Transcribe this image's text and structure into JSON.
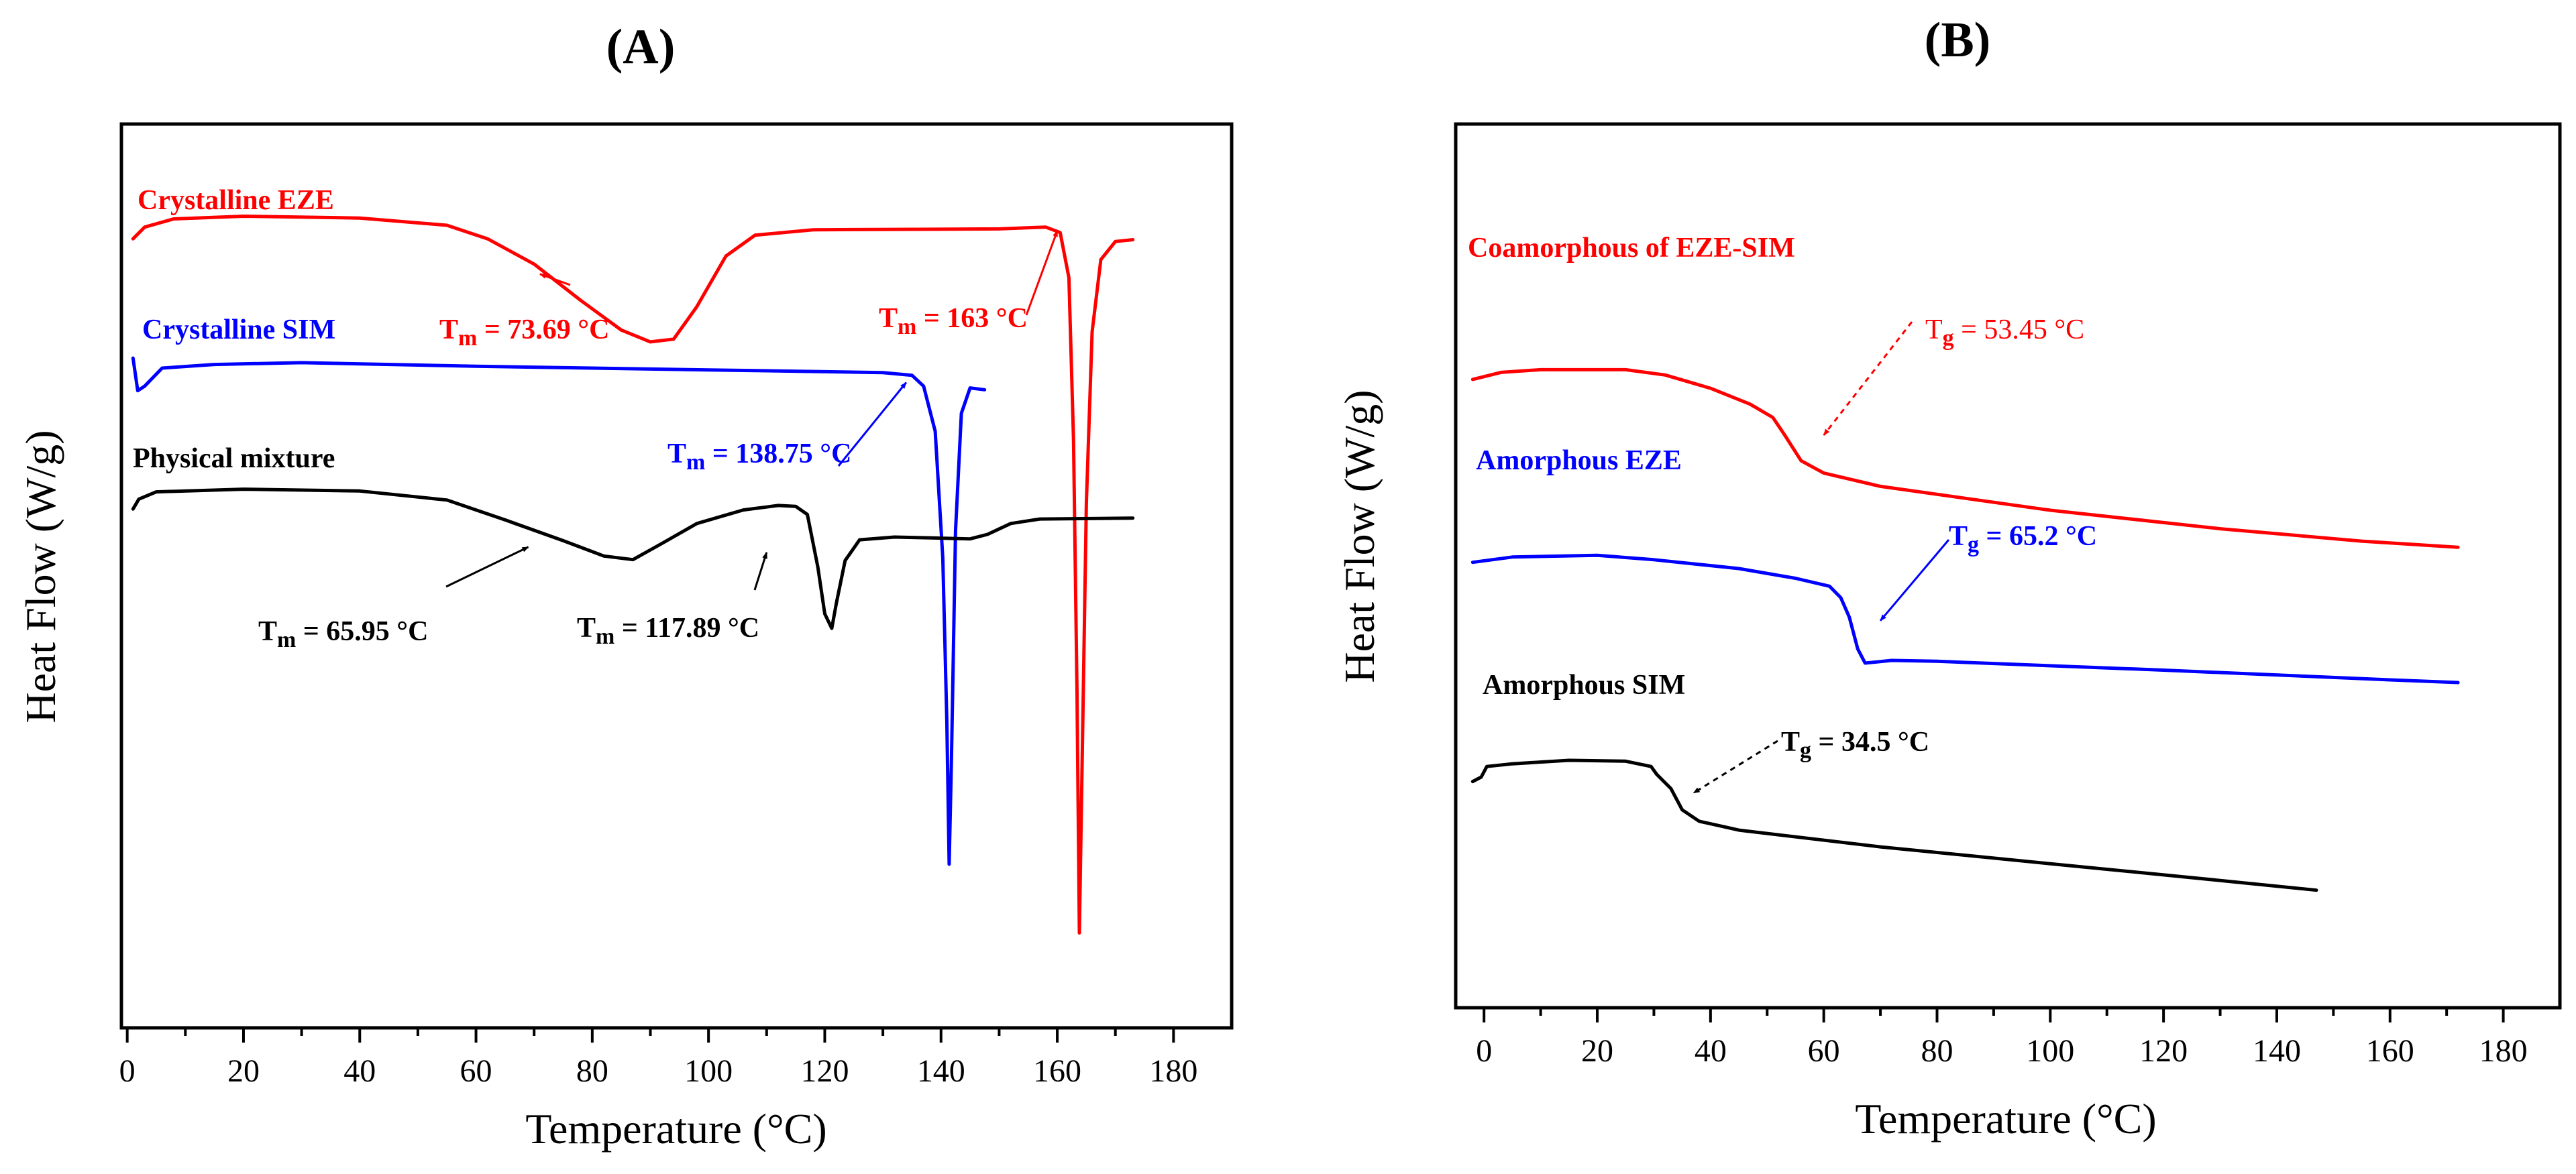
{
  "chart_data": [
    {
      "id": "A",
      "type": "line",
      "panel_label": "(A)",
      "xlabel": "Temperature (°C)",
      "ylabel": "Heat Flow (W/g)",
      "xlim": [
        -1,
        190
      ],
      "ylim": [
        0,
        100
      ],
      "xticks": [
        0,
        20,
        40,
        60,
        80,
        100,
        120,
        140,
        160,
        180
      ],
      "x_minor_step": 10,
      "grid": false,
      "y_units": "relative offset (arbitrary, no y ticks shown)",
      "series": [
        {
          "name": "Crystalline EZE",
          "color": "#ff0000",
          "points": [
            [
              1,
              87.3
            ],
            [
              3,
              88.6
            ],
            [
              8,
              89.5
            ],
            [
              20,
              89.8
            ],
            [
              40,
              89.6
            ],
            [
              55,
              88.8
            ],
            [
              62,
              87.3
            ],
            [
              70,
              84.5
            ],
            [
              78,
              80.5
            ],
            [
              85,
              77.2
            ],
            [
              90,
              75.9
            ],
            [
              94,
              76.2
            ],
            [
              98,
              79.8
            ],
            [
              103,
              85.4
            ],
            [
              108,
              87.7
            ],
            [
              118,
              88.3
            ],
            [
              150,
              88.4
            ],
            [
              158,
              88.6
            ],
            [
              160.5,
              88.0
            ],
            [
              162,
              83
            ],
            [
              162.8,
              65
            ],
            [
              163.4,
              37
            ],
            [
              163.8,
              10.5
            ],
            [
              164.2,
              26
            ],
            [
              165,
              58
            ],
            [
              166,
              77
            ],
            [
              167.5,
              85
            ],
            [
              170,
              87
            ],
            [
              173,
              87.2
            ]
          ]
        },
        {
          "name": "Crystalline SIM",
          "color": "#0000ff",
          "points": [
            [
              1,
              74.1
            ],
            [
              1.8,
              70.5
            ],
            [
              3,
              71.0
            ],
            [
              6,
              73.0
            ],
            [
              15,
              73.4
            ],
            [
              30,
              73.6
            ],
            [
              60,
              73.2
            ],
            [
              100,
              72.8
            ],
            [
              130,
              72.5
            ],
            [
              135,
              72.2
            ],
            [
              137,
              71.0
            ],
            [
              139,
              66
            ],
            [
              140.3,
              52
            ],
            [
              141,
              34
            ],
            [
              141.4,
              18.1
            ],
            [
              141.8,
              30
            ],
            [
              142.5,
              55
            ],
            [
              143.5,
              68
            ],
            [
              145,
              70.8
            ],
            [
              147.5,
              70.6
            ]
          ]
        },
        {
          "name": "Physical mixture",
          "color": "#000000",
          "points": [
            [
              1,
              57.4
            ],
            [
              2,
              58.5
            ],
            [
              5,
              59.3
            ],
            [
              20,
              59.6
            ],
            [
              40,
              59.4
            ],
            [
              55,
              58.4
            ],
            [
              65,
              56.2
            ],
            [
              75,
              53.9
            ],
            [
              82,
              52.2
            ],
            [
              87,
              51.8
            ],
            [
              92,
              53.6
            ],
            [
              98,
              55.8
            ],
            [
              106,
              57.3
            ],
            [
              112,
              57.8
            ],
            [
              115,
              57.7
            ],
            [
              117,
              56.8
            ],
            [
              118.8,
              51
            ],
            [
              120,
              45.8
            ],
            [
              121.2,
              44.2
            ],
            [
              122,
              47
            ],
            [
              123.5,
              51.7
            ],
            [
              126,
              54.0
            ],
            [
              132,
              54.3
            ],
            [
              145,
              54.1
            ],
            [
              148,
              54.6
            ],
            [
              152,
              55.8
            ],
            [
              157,
              56.3
            ],
            [
              173,
              56.4
            ]
          ]
        }
      ],
      "annotations": [
        {
          "series": "Crystalline EZE",
          "name": "T",
          "sub": "m",
          "rest": " = 73.69 °C",
          "color": "#ff0000",
          "target": [
            71,
            83.4
          ]
        },
        {
          "series": "Crystalline EZE",
          "name": "T",
          "sub": "m",
          "rest": " = 163 °C",
          "color": "#ff0000",
          "target": [
            160,
            88.2
          ]
        },
        {
          "series": "Crystalline SIM",
          "name": "T",
          "sub": "m",
          "rest": " = 138.75 °C",
          "color": "#0000ff",
          "target": [
            134,
            71.4
          ]
        },
        {
          "series": "Physical mixture",
          "name": "T",
          "sub": "m",
          "rest": " = 65.95 °C",
          "color": "#000000",
          "target": [
            69,
            53.2
          ]
        },
        {
          "series": "Physical mixture",
          "name": "T",
          "sub": "m",
          "rest": " = 117.89 °C",
          "color": "#000000",
          "target": [
            110,
            52.6
          ]
        }
      ]
    },
    {
      "id": "B",
      "type": "line",
      "panel_label": "(B)",
      "xlabel": "Temperature (°C)",
      "ylabel": "Heat Flow (W/g)",
      "xlim": [
        -5,
        190
      ],
      "ylim": [
        0,
        100
      ],
      "xticks": [
        0,
        20,
        40,
        60,
        80,
        100,
        120,
        140,
        160,
        180
      ],
      "x_minor_step": 10,
      "grid": false,
      "y_units": "relative offset (arbitrary, no y ticks shown)",
      "series": [
        {
          "name": "Coamorphous of EZE-SIM",
          "color": "#ff0000",
          "points": [
            [
              -2,
              71.1
            ],
            [
              3,
              71.9
            ],
            [
              10,
              72.2
            ],
            [
              25,
              72.2
            ],
            [
              32,
              71.6
            ],
            [
              40,
              70.1
            ],
            [
              47,
              68.3
            ],
            [
              51,
              66.8
            ],
            [
              53,
              64.9
            ],
            [
              56,
              61.9
            ],
            [
              60,
              60.5
            ],
            [
              70,
              59.0
            ],
            [
              100,
              56.3
            ],
            [
              130,
              54.2
            ],
            [
              155,
              52.8
            ],
            [
              172,
              52.1
            ]
          ]
        },
        {
          "name": "Amorphous EZE",
          "color": "#0000ff",
          "points": [
            [
              -2,
              50.4
            ],
            [
              5,
              51.0
            ],
            [
              20,
              51.2
            ],
            [
              30,
              50.7
            ],
            [
              45,
              49.7
            ],
            [
              55,
              48.6
            ],
            [
              61,
              47.7
            ],
            [
              63,
              46.4
            ],
            [
              64.5,
              44.2
            ],
            [
              66,
              40.6
            ],
            [
              67.3,
              39.0
            ],
            [
              72,
              39.3
            ],
            [
              80,
              39.2
            ],
            [
              120,
              38.2
            ],
            [
              160,
              37.1
            ],
            [
              172,
              36.8
            ]
          ]
        },
        {
          "name": "Amorphous SIM",
          "color": "#000000",
          "points": [
            [
              -2,
              25.6
            ],
            [
              -0.5,
              26.1
            ],
            [
              0.5,
              27.3
            ],
            [
              5,
              27.6
            ],
            [
              15,
              28.0
            ],
            [
              25,
              27.9
            ],
            [
              29.5,
              27.3
            ],
            [
              30.5,
              26.4
            ],
            [
              33,
              24.8
            ],
            [
              35,
              22.4
            ],
            [
              38,
              21.1
            ],
            [
              45,
              20.1
            ],
            [
              70,
              18.2
            ],
            [
              100,
              16.3
            ],
            [
              130,
              14.4
            ],
            [
              147,
              13.3
            ]
          ]
        }
      ],
      "annotations": [
        {
          "series": "Coamorphous of EZE-SIM",
          "name": "T",
          "sub": "g",
          "rest": " = 53.45 °C",
          "color": "#ff0000",
          "target": [
            60,
            64.8
          ]
        },
        {
          "series": "Amorphous EZE",
          "name": "T",
          "sub": "g",
          "rest": " = 65.2 °C",
          "color": "#0000ff",
          "target": [
            70,
            43.8
          ]
        },
        {
          "series": "Amorphous SIM",
          "name": "T",
          "sub": "g",
          "rest": " = 34.5 °C",
          "color": "#000000",
          "target": [
            37,
            24.3
          ]
        }
      ]
    }
  ]
}
